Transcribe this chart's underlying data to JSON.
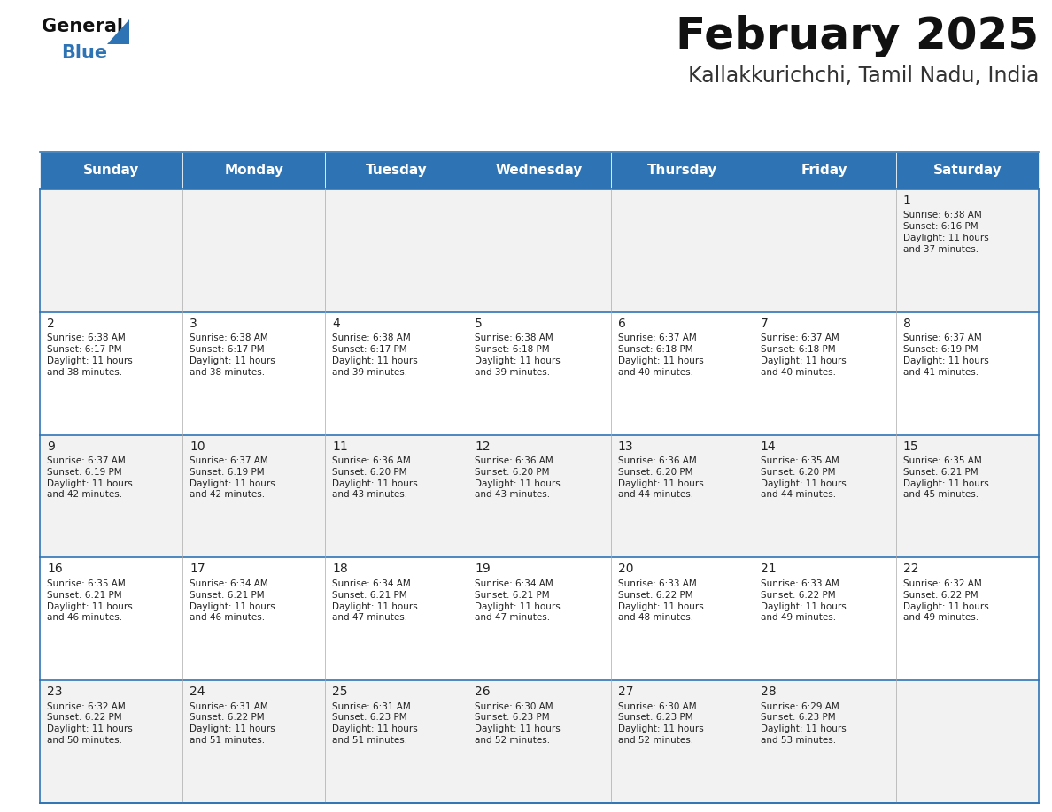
{
  "title": "February 2025",
  "subtitle": "Kallakkurichchi, Tamil Nadu, India",
  "header_bg": "#2E74B5",
  "header_text_color": "#FFFFFF",
  "cell_bg_row0": "#F2F2F2",
  "cell_bg_row1": "#FFFFFF",
  "border_color": "#2E74B5",
  "grid_line_color": "#AAAAAA",
  "days_of_week": [
    "Sunday",
    "Monday",
    "Tuesday",
    "Wednesday",
    "Thursday",
    "Friday",
    "Saturday"
  ],
  "calendar_data": [
    [
      null,
      null,
      null,
      null,
      null,
      null,
      {
        "day": 1,
        "sunrise": "6:38 AM",
        "sunset": "6:16 PM",
        "daylight": "11 hours\nand 37 minutes."
      }
    ],
    [
      {
        "day": 2,
        "sunrise": "6:38 AM",
        "sunset": "6:17 PM",
        "daylight": "11 hours\nand 38 minutes."
      },
      {
        "day": 3,
        "sunrise": "6:38 AM",
        "sunset": "6:17 PM",
        "daylight": "11 hours\nand 38 minutes."
      },
      {
        "day": 4,
        "sunrise": "6:38 AM",
        "sunset": "6:17 PM",
        "daylight": "11 hours\nand 39 minutes."
      },
      {
        "day": 5,
        "sunrise": "6:38 AM",
        "sunset": "6:18 PM",
        "daylight": "11 hours\nand 39 minutes."
      },
      {
        "day": 6,
        "sunrise": "6:37 AM",
        "sunset": "6:18 PM",
        "daylight": "11 hours\nand 40 minutes."
      },
      {
        "day": 7,
        "sunrise": "6:37 AM",
        "sunset": "6:18 PM",
        "daylight": "11 hours\nand 40 minutes."
      },
      {
        "day": 8,
        "sunrise": "6:37 AM",
        "sunset": "6:19 PM",
        "daylight": "11 hours\nand 41 minutes."
      }
    ],
    [
      {
        "day": 9,
        "sunrise": "6:37 AM",
        "sunset": "6:19 PM",
        "daylight": "11 hours\nand 42 minutes."
      },
      {
        "day": 10,
        "sunrise": "6:37 AM",
        "sunset": "6:19 PM",
        "daylight": "11 hours\nand 42 minutes."
      },
      {
        "day": 11,
        "sunrise": "6:36 AM",
        "sunset": "6:20 PM",
        "daylight": "11 hours\nand 43 minutes."
      },
      {
        "day": 12,
        "sunrise": "6:36 AM",
        "sunset": "6:20 PM",
        "daylight": "11 hours\nand 43 minutes."
      },
      {
        "day": 13,
        "sunrise": "6:36 AM",
        "sunset": "6:20 PM",
        "daylight": "11 hours\nand 44 minutes."
      },
      {
        "day": 14,
        "sunrise": "6:35 AM",
        "sunset": "6:20 PM",
        "daylight": "11 hours\nand 44 minutes."
      },
      {
        "day": 15,
        "sunrise": "6:35 AM",
        "sunset": "6:21 PM",
        "daylight": "11 hours\nand 45 minutes."
      }
    ],
    [
      {
        "day": 16,
        "sunrise": "6:35 AM",
        "sunset": "6:21 PM",
        "daylight": "11 hours\nand 46 minutes."
      },
      {
        "day": 17,
        "sunrise": "6:34 AM",
        "sunset": "6:21 PM",
        "daylight": "11 hours\nand 46 minutes."
      },
      {
        "day": 18,
        "sunrise": "6:34 AM",
        "sunset": "6:21 PM",
        "daylight": "11 hours\nand 47 minutes."
      },
      {
        "day": 19,
        "sunrise": "6:34 AM",
        "sunset": "6:21 PM",
        "daylight": "11 hours\nand 47 minutes."
      },
      {
        "day": 20,
        "sunrise": "6:33 AM",
        "sunset": "6:22 PM",
        "daylight": "11 hours\nand 48 minutes."
      },
      {
        "day": 21,
        "sunrise": "6:33 AM",
        "sunset": "6:22 PM",
        "daylight": "11 hours\nand 49 minutes."
      },
      {
        "day": 22,
        "sunrise": "6:32 AM",
        "sunset": "6:22 PM",
        "daylight": "11 hours\nand 49 minutes."
      }
    ],
    [
      {
        "day": 23,
        "sunrise": "6:32 AM",
        "sunset": "6:22 PM",
        "daylight": "11 hours\nand 50 minutes."
      },
      {
        "day": 24,
        "sunrise": "6:31 AM",
        "sunset": "6:22 PM",
        "daylight": "11 hours\nand 51 minutes."
      },
      {
        "day": 25,
        "sunrise": "6:31 AM",
        "sunset": "6:23 PM",
        "daylight": "11 hours\nand 51 minutes."
      },
      {
        "day": 26,
        "sunrise": "6:30 AM",
        "sunset": "6:23 PM",
        "daylight": "11 hours\nand 52 minutes."
      },
      {
        "day": 27,
        "sunrise": "6:30 AM",
        "sunset": "6:23 PM",
        "daylight": "11 hours\nand 52 minutes."
      },
      {
        "day": 28,
        "sunrise": "6:29 AM",
        "sunset": "6:23 PM",
        "daylight": "11 hours\nand 53 minutes."
      },
      null
    ]
  ],
  "logo_text_general": "General",
  "logo_text_blue": "Blue",
  "logo_triangle_color": "#2E74B5",
  "title_fontsize": 36,
  "subtitle_fontsize": 17,
  "header_fontsize": 11,
  "day_number_fontsize": 10,
  "info_fontsize": 7.5
}
